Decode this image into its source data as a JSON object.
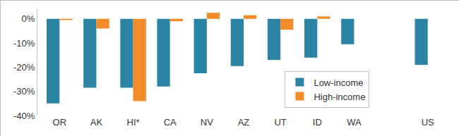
{
  "chart_data": {
    "type": "bar",
    "categories": [
      "OR",
      "AK",
      "HI*",
      "CA",
      "NV",
      "AZ",
      "UT",
      "ID",
      "WA",
      null,
      "US"
    ],
    "series": [
      {
        "name": "Low-income",
        "color": "#2b84a3",
        "values": [
          -35,
          -28.5,
          -28.5,
          -28,
          -22.5,
          -19.5,
          -17,
          -16,
          -10.5,
          null,
          -19
        ]
      },
      {
        "name": "High-income",
        "color": "#f28c28",
        "values": [
          -0.5,
          -4,
          -34,
          -1,
          2.5,
          1.5,
          -4.5,
          1,
          0,
          null,
          null
        ]
      }
    ],
    "ylim": [
      -40,
      4
    ],
    "yticks": [
      {
        "value": 0,
        "label": "0%"
      },
      {
        "value": -10,
        "label": "-10%"
      },
      {
        "value": -20,
        "label": "-20%"
      },
      {
        "value": -30,
        "label": "-30%"
      },
      {
        "value": -40,
        "label": "-40%"
      }
    ],
    "grid": false,
    "legend": "right"
  }
}
